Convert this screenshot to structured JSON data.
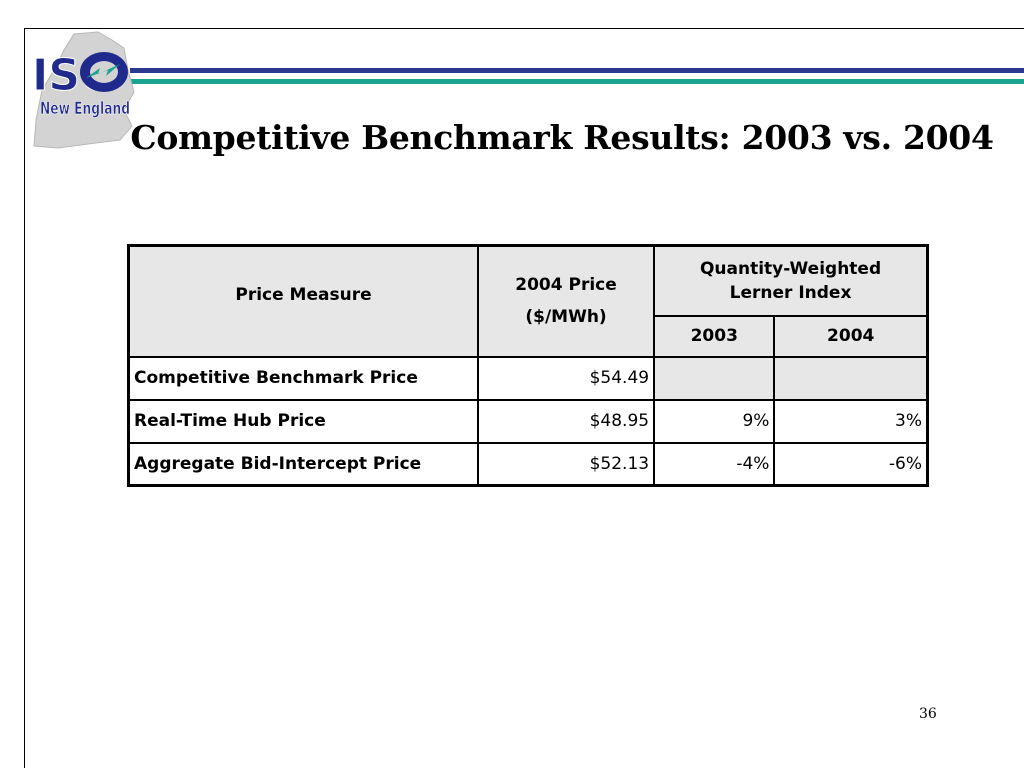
{
  "slide": {
    "title": "Competitive Benchmark Results: 2003 vs. 2004",
    "page_number": "36"
  },
  "logo": {
    "line1": "ISO",
    "line2": "New England",
    "colors": {
      "navy": "#1f2a8c",
      "teal": "#1aa38f",
      "map": "#d3d3d3"
    }
  },
  "stripes": {
    "colors": [
      "#2b3a8f",
      "#1aa38f"
    ]
  },
  "table": {
    "header": {
      "measure": "Price Measure",
      "price_line1": "2004 Price",
      "price_line2": "($/MWh)",
      "lerner_line1": "Quantity-Weighted",
      "lerner_line2": "Lerner Index",
      "year_2003": "2003",
      "year_2004": "2004"
    },
    "rows": [
      {
        "measure": "Competitive Benchmark Price",
        "price": "$54.49",
        "lerner_2003": "",
        "lerner_2004": ""
      },
      {
        "measure": "Real-Time Hub Price",
        "price": "$48.95",
        "lerner_2003": "9%",
        "lerner_2004": "3%"
      },
      {
        "measure": "Aggregate Bid-Intercept Price",
        "price": "$52.13",
        "lerner_2003": "-4%",
        "lerner_2004": "-6%"
      }
    ]
  }
}
